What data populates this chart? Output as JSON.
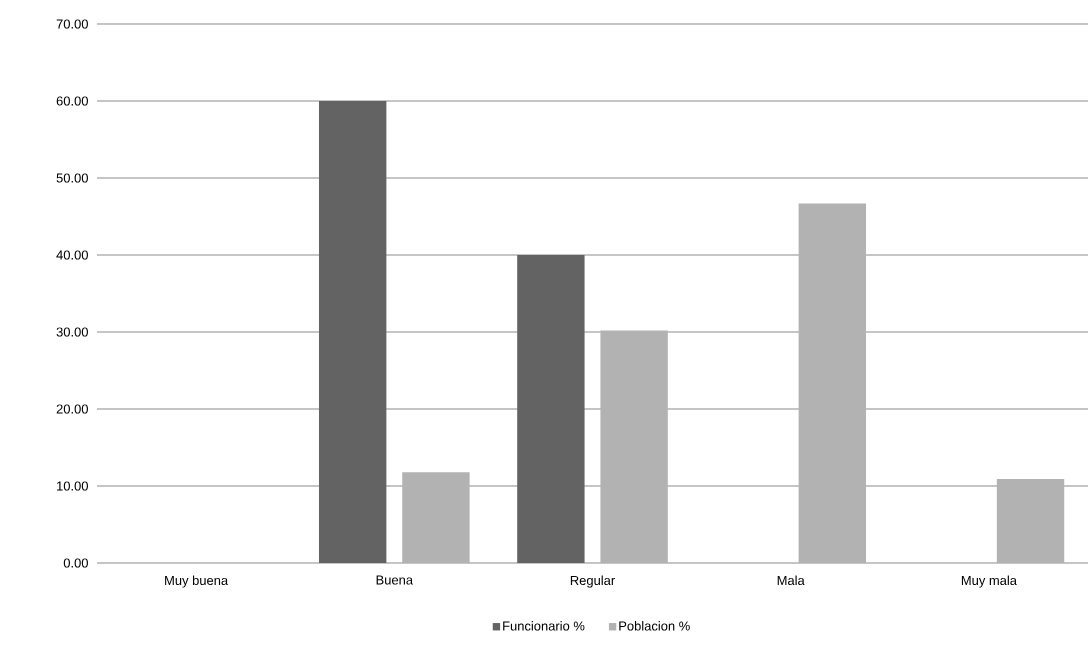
{
  "chart_data": {
    "type": "bar",
    "categories": [
      "Muy buena",
      "Buena",
      "Regular",
      "Mala",
      "Muy mala"
    ],
    "series": [
      {
        "name": "Funcionario %",
        "color": "#636363",
        "values": [
          0,
          60,
          40,
          0,
          0
        ]
      },
      {
        "name": "Poblacion  %",
        "color": "#b2b2b2",
        "values": [
          0,
          11.8,
          30.2,
          46.7,
          10.9
        ]
      }
    ],
    "ylim": [
      0,
      70
    ],
    "yticks": [
      {
        "value": 0,
        "label": "0.00"
      },
      {
        "value": 10,
        "label": "10.00"
      },
      {
        "value": 20,
        "label": "20.00"
      },
      {
        "value": 30,
        "label": "30.00"
      },
      {
        "value": 40,
        "label": "40.00"
      },
      {
        "value": 50,
        "label": "50.00"
      },
      {
        "value": 60,
        "label": "60.00"
      },
      {
        "value": 70,
        "label": "70.00"
      }
    ],
    "grid": "y",
    "legend": "bottom"
  }
}
